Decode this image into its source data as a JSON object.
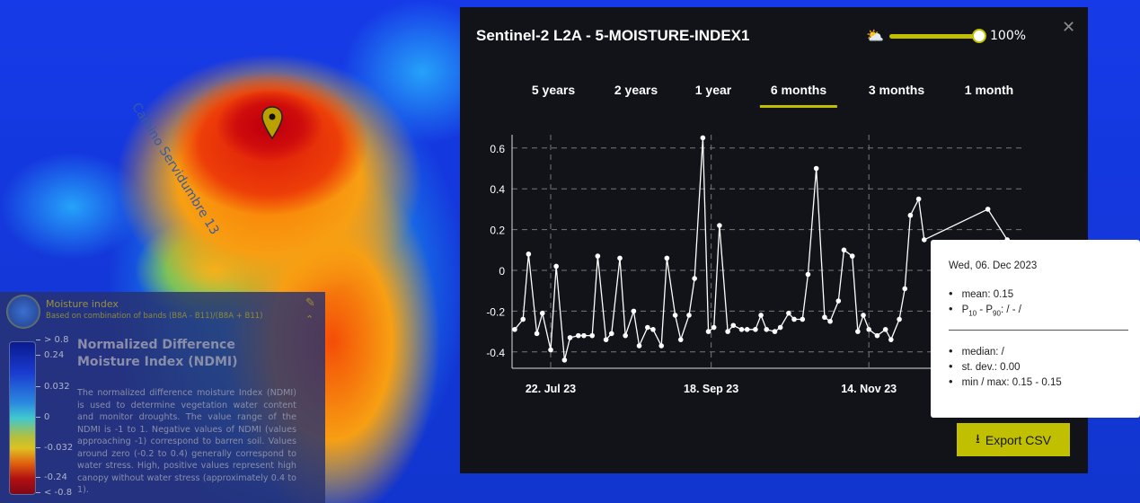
{
  "map": {
    "road_label": "Camino Servidumbre 13"
  },
  "legend": {
    "title": "Moisture index",
    "subtitle": "Based on combination of bands (B8A - B11)/(B8A + B11)",
    "scale_ticks": [
      "> 0.8",
      "0.24",
      "0.032",
      "0",
      "-0.032",
      "-0.24",
      "< -0.8"
    ],
    "heading": "Normalized Difference Moisture Index (NDMI)",
    "description": "The normalized difference moisture Index (NDMI) is used to determine vegetation water content and monitor droughts. The value range of the NDMI is -1 to 1. Negative values of NDMI (values approaching -1) correspond to barren soil. Values around zero (-0.2 to 0.4) generally correspond to water stress. High, positive values represent high canopy without water stress (approximately 0.4 to 1)."
  },
  "dialog": {
    "title": "Sentinel-2 L2A - 5-MOISTURE-INDEX1",
    "cloud_coverage_percent": 100,
    "cloud_coverage_label": "100%",
    "tabs": [
      {
        "label": "5 years"
      },
      {
        "label": "2 years"
      },
      {
        "label": "1 year"
      },
      {
        "label": "6 months",
        "active": true
      },
      {
        "label": "3 months"
      },
      {
        "label": "1 month"
      }
    ],
    "export_label": "Export CSV",
    "accent": "#c0c000"
  },
  "tooltip": {
    "date": "Wed, 06. Dec 2023",
    "mean": "mean: 0.15",
    "p_label": "P",
    "p10": "10",
    "p_dash": " - P",
    "p90": "90",
    "p_value": ": / - /",
    "median": "median: /",
    "stdev": "st. dev.: 0.00",
    "minmax": "min / max: 0.15 - 0.15"
  },
  "chart_data": {
    "type": "line",
    "x_unit": "days since 22 Jul 2023",
    "x_ticks": [
      {
        "day": 0,
        "label": "22. Jul 23"
      },
      {
        "day": 58,
        "label": "18. Sep 23"
      },
      {
        "day": 115,
        "label": "14. Nov 23"
      }
    ],
    "y_ticks": [
      0.6,
      0.4,
      0.2,
      0,
      -0.2,
      -0.4
    ],
    "y_tick_labels": [
      "0.6",
      "0.4",
      "0.2",
      "0",
      "-0.2",
      "-0.4"
    ],
    "grid": true,
    "x": [
      -13,
      -10,
      -8,
      -5,
      -3,
      0,
      2,
      5,
      7,
      10,
      12,
      15,
      17,
      20,
      22,
      25,
      27,
      30,
      32,
      35,
      37,
      40,
      42,
      45,
      47,
      50,
      52,
      55,
      57,
      59,
      61,
      64,
      66,
      69,
      71,
      74,
      76,
      78,
      81,
      83,
      86,
      88,
      91,
      93,
      96,
      99,
      101,
      104,
      106,
      109,
      111,
      113,
      115,
      118,
      121,
      123,
      126,
      128,
      130,
      133,
      135,
      158,
      165
    ],
    "y": [
      -0.29,
      -0.24,
      0.08,
      -0.31,
      -0.21,
      -0.39,
      0.02,
      -0.44,
      -0.33,
      -0.32,
      -0.32,
      -0.32,
      0.07,
      -0.34,
      -0.31,
      0.06,
      -0.32,
      -0.2,
      -0.37,
      -0.28,
      -0.29,
      -0.37,
      0.06,
      -0.22,
      -0.34,
      -0.22,
      -0.04,
      0.65,
      -0.3,
      -0.28,
      0.22,
      -0.3,
      -0.27,
      -0.29,
      -0.29,
      -0.29,
      -0.22,
      -0.29,
      -0.3,
      -0.28,
      -0.21,
      -0.24,
      -0.24,
      -0.02,
      0.5,
      -0.23,
      -0.25,
      -0.15,
      0.1,
      0.07,
      -0.3,
      -0.22,
      -0.29,
      -0.32,
      -0.29,
      -0.34,
      -0.24,
      -0.09,
      0.27,
      0.35,
      0.15,
      0.3,
      0.15
    ]
  }
}
